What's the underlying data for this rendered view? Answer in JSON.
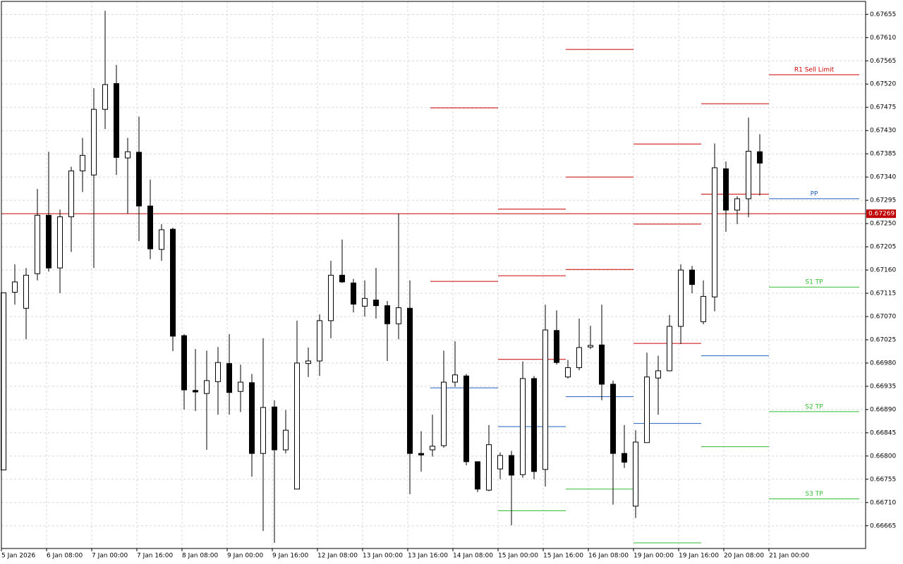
{
  "chart_data": {
    "type": "candlestick",
    "categories": [
      "5 Jan 2026",
      null,
      null,
      null,
      "6 Jan 08:00",
      null,
      null,
      null,
      "7 Jan 00:00",
      null,
      null,
      null,
      "7 Jan 16:00",
      null,
      null,
      null,
      "8 Jan 08:00",
      null,
      null,
      null,
      "9 Jan 00:00",
      null,
      null,
      null,
      "9 Jan 16:00",
      null,
      null,
      null,
      "12 Jan 08:00",
      null,
      null,
      null,
      "13 Jan 00:00",
      null,
      null,
      null,
      "13 Jan 16:00",
      null,
      null,
      null,
      "14 Jan 08:00",
      null,
      null,
      null,
      "15 Jan 00:00",
      null,
      null,
      null,
      "15 Jan 16:00",
      null,
      null,
      null,
      "16 Jan 08:00",
      null,
      null,
      null,
      "19 Jan 00:00",
      null,
      null,
      null,
      "19 Jan 16:00",
      null,
      null,
      null,
      "20 Jan 08:00",
      null,
      null,
      null,
      "21 Jan 00:00"
    ],
    "open": [
      0.66773,
      0.67117,
      0.67086,
      0.67153,
      0.67266,
      0.67164,
      0.67263,
      0.67352,
      0.67344,
      0.67471,
      0.67521,
      0.67377,
      0.67388,
      0.67284,
      0.672,
      0.67239,
      0.67033,
      0.66927,
      0.66921,
      0.66944,
      0.66979,
      0.66925,
      0.66942,
      0.66805,
      0.66895,
      0.66812,
      0.66736,
      0.66979,
      0.66984,
      0.67062,
      0.6715,
      0.67135,
      0.6709,
      0.67102,
      0.67091,
      0.67056,
      0.67086,
      0.66805,
      0.66812,
      0.6682,
      0.66943,
      0.66955,
      0.66789,
      0.66734,
      0.66775,
      0.66801,
      0.66764,
      0.6695,
      0.66774,
      0.67043,
      0.66953,
      0.66971,
      0.67011,
      0.67015,
      0.66939,
      0.66805,
      0.66703,
      0.66826,
      0.66951,
      0.66965,
      0.67051,
      0.6716,
      0.6706,
      0.67108,
      0.67356,
      0.67276,
      0.67298,
      0.67389,
      null
    ],
    "high": [
      0.67116,
      0.67171,
      0.67164,
      0.67317,
      0.67389,
      0.67277,
      0.6736,
      0.67416,
      0.67512,
      0.67662,
      0.67557,
      0.67416,
      0.67457,
      0.67335,
      0.67249,
      0.67242,
      0.67036,
      0.67007,
      0.67004,
      0.67011,
      0.67036,
      0.66977,
      0.66959,
      0.67028,
      0.66908,
      0.66889,
      0.67062,
      0.6701,
      0.67074,
      0.67178,
      0.67219,
      0.67143,
      0.6714,
      0.67164,
      0.671,
      0.67269,
      0.6714,
      0.66848,
      0.6688,
      0.67004,
      0.67022,
      0.66959,
      0.66789,
      0.6686,
      0.66807,
      0.6681,
      0.66983,
      0.66955,
      0.67093,
      0.67082,
      0.66986,
      0.67066,
      0.67052,
      0.67093,
      0.66946,
      0.6686,
      0.6685,
      0.67,
      0.66994,
      0.67073,
      0.67171,
      0.67168,
      0.6714,
      0.67405,
      0.6737,
      0.67303,
      0.67455,
      0.67423,
      null
    ],
    "low": [
      0.66773,
      0.67093,
      0.67026,
      0.6714,
      0.67157,
      0.67115,
      0.67195,
      0.67311,
      0.67164,
      0.67433,
      0.67344,
      0.67269,
      0.67216,
      0.67181,
      0.67178,
      0.67003,
      0.6689,
      0.66887,
      0.66812,
      0.6688,
      0.6688,
      0.66885,
      0.6676,
      0.66655,
      0.66632,
      0.66805,
      0.66736,
      0.66953,
      0.66955,
      0.67028,
      0.67135,
      0.67078,
      0.6707,
      0.67066,
      0.66984,
      0.67026,
      0.66726,
      0.6677,
      0.66799,
      0.66816,
      0.66934,
      0.66782,
      0.6673,
      0.66732,
      0.66755,
      0.66666,
      0.66758,
      0.66755,
      0.66741,
      0.66977,
      0.6695,
      0.66966,
      0.67007,
      0.66908,
      0.66706,
      0.66777,
      0.6668,
      0.66826,
      0.6688,
      0.66964,
      0.67017,
      0.67115,
      0.67055,
      0.6708,
      0.67234,
      0.67249,
      0.67262,
      0.67304,
      null
    ],
    "close": [
      0.67116,
      0.67137,
      0.6715,
      0.67266,
      0.67164,
      0.67263,
      0.67352,
      0.67382,
      0.67471,
      0.67519,
      0.67378,
      0.67389,
      0.67284,
      0.67201,
      0.67238,
      0.67032,
      0.66928,
      0.66924,
      0.66946,
      0.66981,
      0.66923,
      0.66943,
      0.66805,
      0.66894,
      0.66812,
      0.6685,
      0.6698,
      0.66984,
      0.67062,
      0.6715,
      0.67137,
      0.67094,
      0.67105,
      0.67091,
      0.67056,
      0.67087,
      0.66805,
      0.66802,
      0.66819,
      0.66943,
      0.66957,
      0.66789,
      0.66736,
      0.66822,
      0.66801,
      0.66763,
      0.6695,
      0.6677,
      0.67044,
      0.66981,
      0.66971,
      0.6701,
      0.67014,
      0.66939,
      0.66805,
      0.66788,
      0.66827,
      0.66953,
      0.66965,
      0.67051,
      0.6716,
      0.67132,
      0.67109,
      0.67358,
      0.67276,
      0.67298,
      0.6739,
      0.67367,
      null
    ],
    "up_color": "#ffffff",
    "down_color": "#000000",
    "ylim": [
      0.66621,
      0.6768
    ],
    "yticks": [
      0.67655,
      {
        "value": 0.6761,
        "label": "0.67610"
      },
      0.67565,
      {
        "value": 0.6752,
        "label": "0.67520"
      },
      0.67475,
      {
        "value": 0.6743,
        "label": "0.67430"
      },
      0.67385,
      {
        "value": 0.6734,
        "label": "0.67340"
      },
      0.67295,
      {
        "value": 0.6725,
        "label": "0.67250"
      },
      0.67205,
      {
        "value": 0.6716,
        "label": "0.67160"
      },
      0.67115,
      {
        "value": 0.6707,
        "label": "0.67070"
      },
      0.67025,
      {
        "value": 0.6698,
        "label": "0.66980"
      },
      0.66935,
      {
        "value": 0.6689,
        "label": "0.66890"
      },
      0.66845,
      {
        "value": 0.668,
        "label": "0.66800"
      },
      0.66755,
      {
        "value": 0.6671,
        "label": "0.66710"
      },
      0.66665
    ],
    "grid": true,
    "current_price": 0.67269,
    "current_price_color": "#c00000",
    "levels": [
      {
        "x": [
          38,
          44
        ],
        "value": 0.67474,
        "color": "#cc0000"
      },
      {
        "x": [
          38,
          44
        ],
        "value": 0.67138,
        "color": "#cc0000"
      },
      {
        "x": [
          38,
          44
        ],
        "value": 0.66932,
        "color": "#1f5fbf"
      },
      {
        "x": [
          44,
          50
        ],
        "value": 0.67278,
        "color": "#cc0000"
      },
      {
        "x": [
          44,
          50
        ],
        "value": 0.67149,
        "color": "#cc0000"
      },
      {
        "x": [
          44,
          50
        ],
        "value": 0.66987,
        "color": "#cc0000"
      },
      {
        "x": [
          44,
          50
        ],
        "value": 0.66857,
        "color": "#1f5fbf"
      },
      {
        "x": [
          44,
          50
        ],
        "value": 0.66694,
        "color": "#33bb33"
      },
      {
        "x": [
          50,
          56
        ],
        "value": 0.67587,
        "color": "#cc0000"
      },
      {
        "x": [
          50,
          56
        ],
        "value": 0.6734,
        "color": "#cc0000"
      },
      {
        "x": [
          50,
          56
        ],
        "value": 0.67161,
        "color": "#cc0000"
      },
      {
        "x": [
          50,
          56
        ],
        "value": 0.66915,
        "color": "#1f5fbf"
      },
      {
        "x": [
          50,
          56
        ],
        "value": 0.66736,
        "color": "#33bb33"
      },
      {
        "x": [
          56,
          62
        ],
        "value": 0.67404,
        "color": "#cc0000"
      },
      {
        "x": [
          56,
          62
        ],
        "value": 0.67249,
        "color": "#cc0000"
      },
      {
        "x": [
          56,
          62
        ],
        "value": 0.67018,
        "color": "#cc0000"
      },
      {
        "x": [
          56,
          62
        ],
        "value": 0.66863,
        "color": "#1f5fbf"
      },
      {
        "x": [
          56,
          62
        ],
        "value": 0.66632,
        "color": "#33bb33"
      },
      {
        "x": [
          62,
          68
        ],
        "value": 0.67482,
        "color": "#cc0000"
      },
      {
        "x": [
          62,
          68
        ],
        "value": 0.67307,
        "color": "#cc0000"
      },
      {
        "x": [
          62,
          68
        ],
        "value": 0.66994,
        "color": "#1f5fbf"
      },
      {
        "x": [
          62,
          68
        ],
        "value": 0.66818,
        "color": "#33bb33"
      },
      {
        "x": [
          68,
          76
        ],
        "value": 0.67538,
        "color": "#cc0000",
        "label": "R1 Sell Limit"
      },
      {
        "x": [
          68,
          76
        ],
        "value": 0.67298,
        "color": "#1f5fbf",
        "label": "PP"
      },
      {
        "x": [
          68,
          76
        ],
        "value": 0.67127,
        "color": "#33bb33",
        "label": "S1 TP"
      },
      {
        "x": [
          68,
          76
        ],
        "value": 0.66886,
        "color": "#33bb33",
        "label": "S2 TP"
      },
      {
        "x": [
          68,
          76
        ],
        "value": 0.66717,
        "color": "#33bb33",
        "label": "S3 TP"
      }
    ]
  }
}
